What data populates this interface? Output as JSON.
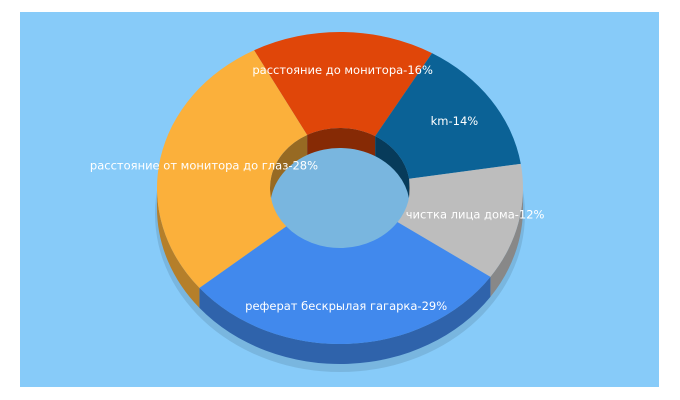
{
  "chart_data": {
    "type": "pie",
    "donut": true,
    "style": "3d",
    "background": "#87cbf9",
    "title": "",
    "slices": [
      {
        "label": "расстояние до монитора",
        "value": 16,
        "display": "расстояние до монитора-16%",
        "color": "#e04609"
      },
      {
        "label": "km",
        "value": 14,
        "display": "km-14%",
        "color": "#0b6296"
      },
      {
        "label": "чистка лица дома",
        "value": 12,
        "display": "чистка лица дома-12%",
        "color": "#bdbdbd"
      },
      {
        "label": "реферат бескрылая гагарка",
        "value": 29,
        "display": "реферат бескрылая гагарка-29%",
        "color": "#4189ed"
      },
      {
        "label": "расстояние от монитора до глаз",
        "value": 28,
        "display": "расстояние от монитора до глаз-28%",
        "color": "#fbb03b"
      }
    ]
  }
}
